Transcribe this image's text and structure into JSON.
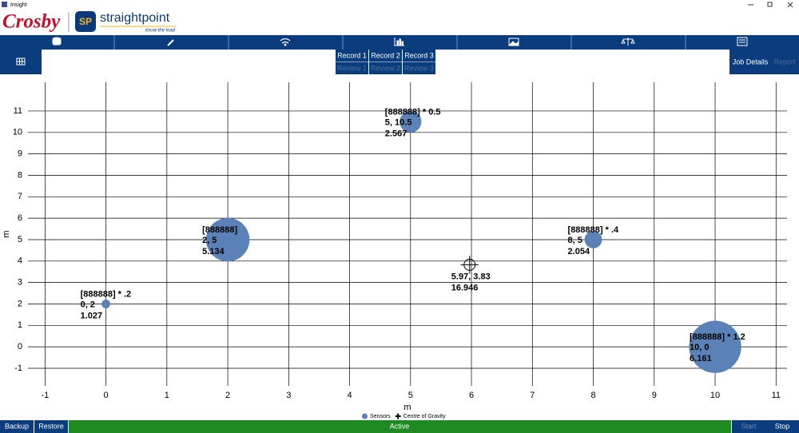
{
  "window": {
    "title": "Insight"
  },
  "header": {
    "brand": "Crosby",
    "logo_badge": "SP",
    "product": "straightpoint",
    "tagline": "know the load"
  },
  "records": [
    "Record 1",
    "Record 2",
    "Record 3"
  ],
  "reviews": [
    "Review 1",
    "Review 2",
    "Review 3"
  ],
  "actions": [
    "Job Details",
    "Report"
  ],
  "footer": {
    "backup": "Backup",
    "restore": "Restore",
    "status": "Active",
    "start": "Start",
    "stop": "Stop"
  },
  "chart_data": {
    "type": "scatter",
    "xlabel": "m",
    "ylabel": "m",
    "xlim": [
      -1.28,
      11.18
    ],
    "ylim": [
      -1.82,
      12.34
    ],
    "xticks": [
      -1,
      0,
      1,
      2,
      3,
      4,
      5,
      6,
      7,
      8,
      9,
      10,
      11
    ],
    "yticks": [
      -1,
      0,
      1,
      2,
      3,
      4,
      5,
      6,
      7,
      8,
      9,
      10,
      11
    ],
    "grid": true,
    "legend": "bottom",
    "series": [
      {
        "name": "Sensors",
        "color": "#5b82b8",
        "marker": "circle",
        "x": [
          0,
          2,
          5,
          8,
          10
        ],
        "values": [
          2,
          5,
          10.5,
          5,
          0
        ],
        "sizes": [
          1.027,
          5.134,
          2.567,
          2.054,
          6.161
        ],
        "point_names": [
          "[888888] * .2",
          "[888888]",
          "[888888] * 0.5",
          "[888888] * .4",
          "[888888] * 1.2"
        ],
        "coord_labels": [
          "0, 2",
          "2, 5",
          "5, 10.5",
          "8, 5",
          "10, 0"
        ]
      },
      {
        "name": "Centre of Gravity",
        "color": "#000000",
        "marker": "cross",
        "x": [
          5.97
        ],
        "values": [
          3.83
        ],
        "sizes": [
          16.946
        ],
        "coord_labels": [
          "5.97, 3.83"
        ]
      }
    ]
  }
}
